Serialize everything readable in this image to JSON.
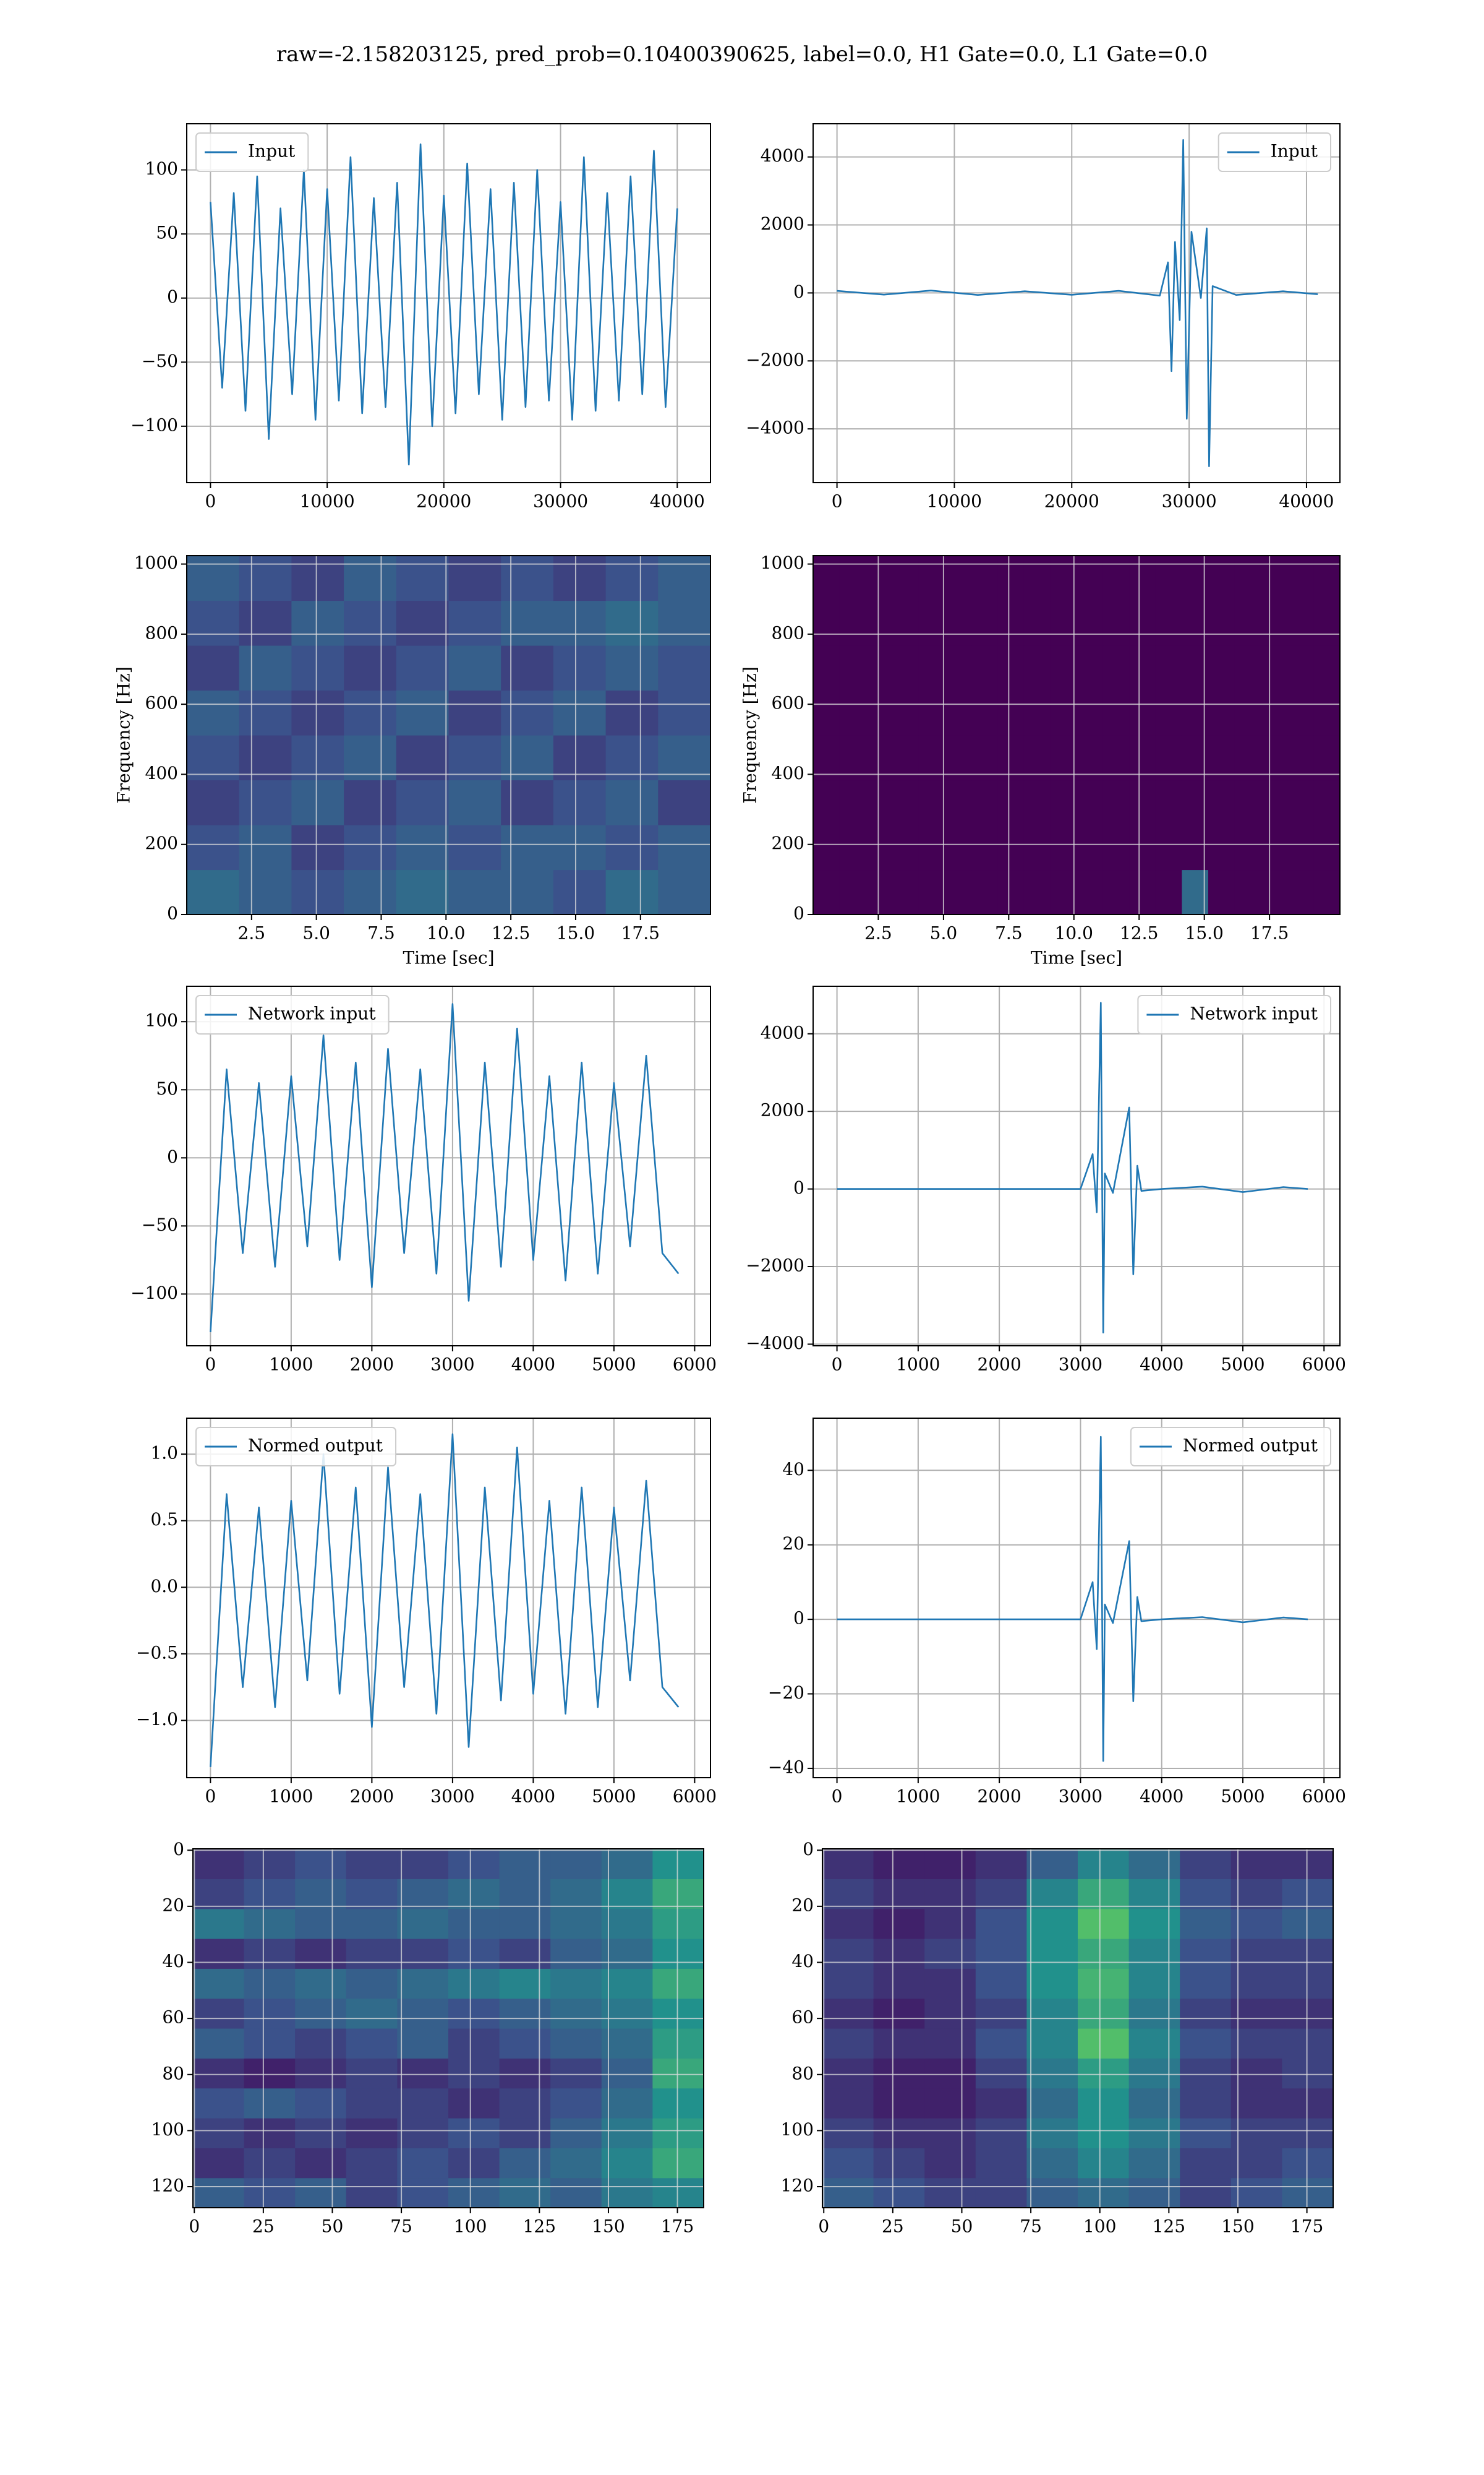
{
  "title": "raw=-2.158203125, pred_prob=0.10400390625, label=0.0, H1 Gate=0.0, L1 Gate=0.0",
  "chart_data": [
    {
      "type": "line",
      "grid": true,
      "legend": "upper left",
      "xlim": [
        -2034,
        42847
      ],
      "ylim": [
        -144,
        136
      ],
      "xticks": [
        0,
        10000,
        20000,
        30000,
        40000
      ],
      "yticks": [
        {
          "value": -100,
          "label": "−100"
        },
        {
          "value": -50,
          "label": "−50"
        },
        0,
        50,
        100
      ],
      "series": [
        {
          "name": "Input",
          "color": "#1f77b4",
          "x": [
            0,
            1000,
            2000,
            3000,
            4000,
            5000,
            6000,
            7000,
            8000,
            9000,
            10000,
            11000,
            12000,
            13000,
            14000,
            15000,
            16000,
            17000,
            18000,
            19000,
            20000,
            21000,
            22000,
            23000,
            24000,
            25000,
            26000,
            27000,
            28000,
            29000,
            30000,
            31000,
            32000,
            33000,
            34000,
            35000,
            36000,
            37000,
            38000,
            39000,
            40000
          ],
          "values": [
            75,
            -70,
            82,
            -88,
            95,
            -110,
            70,
            -75,
            100,
            -95,
            85,
            -80,
            110,
            -90,
            78,
            -85,
            90,
            -130,
            120,
            -100,
            80,
            -90,
            105,
            -75,
            85,
            -95,
            90,
            -85,
            100,
            -80,
            75,
            -95,
            110,
            -88,
            82,
            -80,
            95,
            -75,
            115,
            -85,
            70
          ]
        }
      ]
    },
    {
      "type": "line",
      "grid": true,
      "legend": "upper right",
      "xlim": [
        -2034,
        42847
      ],
      "ylim": [
        -5581,
        4977
      ],
      "xticks": [
        0,
        10000,
        20000,
        30000,
        40000
      ],
      "yticks": [
        {
          "value": -4000,
          "label": "−4000"
        },
        {
          "value": -2000,
          "label": "−2000"
        },
        0,
        2000,
        4000
      ],
      "series": [
        {
          "name": "Input",
          "color": "#1f77b4",
          "x": [
            0,
            4000,
            8000,
            12000,
            16000,
            20000,
            24000,
            27500,
            28200,
            28500,
            28800,
            29200,
            29500,
            29800,
            30200,
            31000,
            31500,
            31700,
            32000,
            34000,
            38000,
            40960
          ],
          "values": [
            60,
            -50,
            70,
            -60,
            50,
            -55,
            60,
            -80,
            900,
            -2300,
            1500,
            -800,
            4500,
            -3700,
            1800,
            -150,
            1900,
            -5100,
            200,
            -60,
            50,
            -40
          ]
        }
      ]
    },
    {
      "type": "heatmap",
      "grid": true,
      "xlabel": "Time [sec]",
      "ylabel": "Frequency [Hz]",
      "xlim": [
        0,
        20.2
      ],
      "ylim": [
        0,
        1024
      ],
      "xticks": [
        2.5,
        {
          "value": 5,
          "label": "5.0"
        },
        7.5,
        {
          "value": 10,
          "label": "10.0"
        },
        12.5,
        {
          "value": 15,
          "label": "15.0"
        },
        17.5
      ],
      "yticks": [
        0,
        200,
        400,
        600,
        800,
        1000
      ],
      "z": [
        [
          0.35,
          0.3,
          0.25,
          0.3,
          0.35,
          0.3,
          0.3,
          0.25,
          0.35,
          0.3
        ],
        [
          0.25,
          0.3,
          0.2,
          0.25,
          0.3,
          0.25,
          0.3,
          0.3,
          0.25,
          0.3
        ],
        [
          0.2,
          0.25,
          0.3,
          0.2,
          0.25,
          0.3,
          0.2,
          0.25,
          0.3,
          0.2
        ],
        [
          0.25,
          0.2,
          0.25,
          0.3,
          0.2,
          0.25,
          0.3,
          0.2,
          0.25,
          0.3
        ],
        [
          0.3,
          0.25,
          0.2,
          0.25,
          0.3,
          0.2,
          0.25,
          0.3,
          0.2,
          0.25
        ],
        [
          0.2,
          0.3,
          0.25,
          0.2,
          0.25,
          0.3,
          0.2,
          0.25,
          0.3,
          0.25
        ],
        [
          0.25,
          0.2,
          0.3,
          0.25,
          0.2,
          0.25,
          0.3,
          0.3,
          0.35,
          0.3
        ],
        [
          0.3,
          0.25,
          0.2,
          0.3,
          0.25,
          0.2,
          0.25,
          0.2,
          0.25,
          0.3
        ]
      ]
    },
    {
      "type": "heatmap",
      "grid": true,
      "xlabel": "Time [sec]",
      "ylabel": "Frequency [Hz]",
      "xlim": [
        0,
        20.2
      ],
      "ylim": [
        0,
        1024
      ],
      "xticks": [
        2.5,
        {
          "value": 5,
          "label": "5.0"
        },
        7.5,
        {
          "value": 10,
          "label": "10.0"
        },
        12.5,
        {
          "value": 15,
          "label": "15.0"
        },
        17.5
      ],
      "yticks": [
        0,
        200,
        400,
        600,
        800,
        1000
      ],
      "z": [
        [
          0,
          0,
          0,
          0,
          0,
          0,
          0,
          0,
          0,
          0,
          0,
          0,
          0,
          0,
          0.35,
          0,
          0,
          0,
          0,
          0
        ],
        [
          0,
          0,
          0,
          0,
          0,
          0,
          0,
          0,
          0,
          0,
          0,
          0,
          0,
          0,
          0,
          0,
          0,
          0,
          0,
          0
        ],
        [
          0,
          0,
          0,
          0,
          0,
          0,
          0,
          0,
          0,
          0,
          0,
          0,
          0,
          0,
          0,
          0,
          0,
          0,
          0,
          0
        ],
        [
          0,
          0,
          0,
          0,
          0,
          0,
          0,
          0,
          0,
          0,
          0,
          0,
          0,
          0,
          0,
          0,
          0,
          0,
          0,
          0
        ],
        [
          0,
          0,
          0,
          0,
          0,
          0,
          0,
          0,
          0,
          0,
          0,
          0,
          0,
          0,
          0,
          0,
          0,
          0,
          0,
          0
        ],
        [
          0,
          0,
          0,
          0,
          0,
          0,
          0,
          0,
          0,
          0,
          0,
          0,
          0,
          0,
          0,
          0,
          0,
          0,
          0,
          0
        ],
        [
          0,
          0,
          0,
          0,
          0,
          0,
          0,
          0,
          0,
          0,
          0,
          0,
          0,
          0,
          0,
          0,
          0,
          0,
          0,
          0
        ],
        [
          0,
          0,
          0,
          0,
          0,
          0,
          0,
          0,
          0,
          0,
          0,
          0,
          0,
          0,
          0,
          0,
          0,
          0,
          0,
          0
        ]
      ]
    },
    {
      "type": "line",
      "grid": true,
      "legend": "upper left",
      "xlim": [
        -294,
        6196
      ],
      "ylim": [
        -138,
        126
      ],
      "xticks": [
        0,
        1000,
        2000,
        3000,
        4000,
        5000,
        6000
      ],
      "yticks": [
        {
          "value": -100,
          "label": "−100"
        },
        {
          "value": -50,
          "label": "−50"
        },
        0,
        50,
        100
      ],
      "series": [
        {
          "name": "Network input",
          "color": "#1f77b4",
          "x": [
            0,
            200,
            400,
            600,
            800,
            1000,
            1200,
            1400,
            1600,
            1800,
            2000,
            2200,
            2400,
            2600,
            2800,
            3000,
            3200,
            3400,
            3600,
            3800,
            4000,
            4200,
            4400,
            4600,
            4800,
            5000,
            5200,
            5400,
            5600,
            5800
          ],
          "values": [
            -128,
            65,
            -70,
            55,
            -80,
            60,
            -65,
            90,
            -75,
            70,
            -95,
            80,
            -70,
            65,
            -85,
            113,
            -105,
            70,
            -80,
            95,
            -75,
            60,
            -90,
            70,
            -85,
            55,
            -65,
            75,
            -70,
            -85
          ]
        }
      ]
    },
    {
      "type": "line",
      "grid": true,
      "legend": "upper right",
      "xlim": [
        -294,
        6196
      ],
      "ylim": [
        -4041,
        5224
      ],
      "xticks": [
        0,
        1000,
        2000,
        3000,
        4000,
        5000,
        6000
      ],
      "yticks": [
        {
          "value": -4000,
          "label": "−4000"
        },
        {
          "value": -2000,
          "label": "−2000"
        },
        0,
        2000,
        4000
      ],
      "series": [
        {
          "name": "Network input",
          "color": "#1f77b4",
          "x": [
            0,
            1000,
            2000,
            3000,
            3150,
            3200,
            3250,
            3280,
            3300,
            3400,
            3600,
            3650,
            3700,
            3750,
            4000,
            4500,
            5000,
            5500,
            5800
          ],
          "values": [
            0,
            0,
            0,
            0,
            900,
            -600,
            4800,
            -3700,
            400,
            -100,
            2100,
            -2200,
            600,
            -50,
            0,
            60,
            -80,
            50,
            0
          ]
        }
      ]
    },
    {
      "type": "line",
      "grid": true,
      "legend": "upper left",
      "xlim": [
        -294,
        6196
      ],
      "ylim": [
        -1.43,
        1.27
      ],
      "xticks": [
        0,
        1000,
        2000,
        3000,
        4000,
        5000,
        6000
      ],
      "yticks": [
        {
          "value": -1,
          "label": "−1.0"
        },
        {
          "value": -0.5,
          "label": "−0.5"
        },
        {
          "value": 0,
          "label": "0.0"
        },
        0.5,
        {
          "value": 1,
          "label": "1.0"
        }
      ],
      "series": [
        {
          "name": "Normed output",
          "color": "#1f77b4",
          "x": [
            0,
            200,
            400,
            600,
            800,
            1000,
            1200,
            1400,
            1600,
            1800,
            2000,
            2200,
            2400,
            2600,
            2800,
            3000,
            3200,
            3400,
            3600,
            3800,
            4000,
            4200,
            4400,
            4600,
            4800,
            5000,
            5200,
            5400,
            5600,
            5800
          ],
          "values": [
            -1.35,
            0.7,
            -0.75,
            0.6,
            -0.9,
            0.65,
            -0.7,
            1.0,
            -0.8,
            0.75,
            -1.05,
            0.9,
            -0.75,
            0.7,
            -0.95,
            1.15,
            -1.2,
            0.75,
            -0.85,
            1.05,
            -0.8,
            0.65,
            -0.95,
            0.75,
            -0.9,
            0.6,
            -0.7,
            0.8,
            -0.75,
            -0.9
          ]
        }
      ]
    },
    {
      "type": "line",
      "grid": true,
      "legend": "upper right",
      "xlim": [
        -294,
        6196
      ],
      "ylim": [
        -42.5,
        54
      ],
      "xticks": [
        0,
        1000,
        2000,
        3000,
        4000,
        5000,
        6000
      ],
      "yticks": [
        {
          "value": -40,
          "label": "−40"
        },
        {
          "value": -20,
          "label": "−20"
        },
        0,
        20,
        40
      ],
      "series": [
        {
          "name": "Normed output",
          "color": "#1f77b4",
          "x": [
            0,
            1000,
            2000,
            3000,
            3150,
            3200,
            3250,
            3280,
            3300,
            3400,
            3600,
            3650,
            3700,
            3750,
            4000,
            4500,
            5000,
            5500,
            5800
          ],
          "values": [
            0,
            0,
            0,
            0,
            10,
            -8,
            49,
            -38,
            4,
            -1,
            21,
            -22,
            6,
            -0.5,
            0,
            0.6,
            -0.8,
            0.5,
            0
          ]
        }
      ]
    },
    {
      "type": "heatmap",
      "grid": true,
      "xlim": [
        -0.5,
        184.5
      ],
      "ylim": [
        127.5,
        -0.5
      ],
      "xticks": [
        0,
        25,
        50,
        75,
        100,
        125,
        150,
        175
      ],
      "yticks": [
        0,
        20,
        40,
        60,
        80,
        100,
        120
      ],
      "z": [
        [
          0.3,
          0.25,
          0.3,
          0.2,
          0.25,
          0.3,
          0.35,
          0.3,
          0.4,
          0.45
        ],
        [
          0.15,
          0.2,
          0.15,
          0.2,
          0.25,
          0.2,
          0.3,
          0.35,
          0.45,
          0.6
        ],
        [
          0.2,
          0.15,
          0.2,
          0.15,
          0.2,
          0.25,
          0.2,
          0.3,
          0.4,
          0.55
        ],
        [
          0.25,
          0.3,
          0.25,
          0.2,
          0.2,
          0.15,
          0.2,
          0.25,
          0.35,
          0.5
        ],
        [
          0.15,
          0.1,
          0.15,
          0.2,
          0.15,
          0.2,
          0.15,
          0.2,
          0.3,
          0.6
        ],
        [
          0.3,
          0.25,
          0.2,
          0.25,
          0.3,
          0.2,
          0.25,
          0.3,
          0.35,
          0.55
        ],
        [
          0.2,
          0.25,
          0.3,
          0.35,
          0.3,
          0.25,
          0.3,
          0.35,
          0.4,
          0.5
        ],
        [
          0.35,
          0.3,
          0.35,
          0.3,
          0.35,
          0.4,
          0.45,
          0.4,
          0.45,
          0.6
        ],
        [
          0.15,
          0.2,
          0.15,
          0.2,
          0.2,
          0.25,
          0.2,
          0.3,
          0.35,
          0.5
        ],
        [
          0.4,
          0.35,
          0.3,
          0.3,
          0.35,
          0.3,
          0.3,
          0.35,
          0.4,
          0.55
        ],
        [
          0.2,
          0.25,
          0.3,
          0.25,
          0.3,
          0.35,
          0.3,
          0.35,
          0.45,
          0.6
        ],
        [
          0.15,
          0.2,
          0.25,
          0.2,
          0.2,
          0.25,
          0.3,
          0.3,
          0.35,
          0.5
        ]
      ]
    },
    {
      "type": "heatmap",
      "grid": true,
      "xlim": [
        -0.5,
        184.5
      ],
      "ylim": [
        127.5,
        -0.5
      ],
      "xticks": [
        0,
        25,
        50,
        75,
        100,
        125,
        150,
        175
      ],
      "yticks": [
        0,
        20,
        40,
        60,
        80,
        100,
        120
      ],
      "z": [
        [
          0.3,
          0.25,
          0.2,
          0.2,
          0.3,
          0.35,
          0.3,
          0.2,
          0.25,
          0.3
        ],
        [
          0.25,
          0.2,
          0.15,
          0.2,
          0.35,
          0.45,
          0.35,
          0.2,
          0.2,
          0.25
        ],
        [
          0.2,
          0.15,
          0.15,
          0.2,
          0.4,
          0.5,
          0.4,
          0.25,
          0.2,
          0.2
        ],
        [
          0.15,
          0.1,
          0.1,
          0.15,
          0.35,
          0.5,
          0.35,
          0.2,
          0.15,
          0.15
        ],
        [
          0.15,
          0.1,
          0.1,
          0.2,
          0.4,
          0.55,
          0.4,
          0.2,
          0.15,
          0.2
        ],
        [
          0.2,
          0.15,
          0.15,
          0.25,
          0.45,
          0.7,
          0.45,
          0.25,
          0.2,
          0.2
        ],
        [
          0.15,
          0.1,
          0.15,
          0.2,
          0.45,
          0.6,
          0.4,
          0.2,
          0.15,
          0.15
        ],
        [
          0.2,
          0.15,
          0.15,
          0.25,
          0.5,
          0.65,
          0.45,
          0.25,
          0.2,
          0.2
        ],
        [
          0.2,
          0.15,
          0.2,
          0.25,
          0.5,
          0.6,
          0.45,
          0.25,
          0.2,
          0.2
        ],
        [
          0.15,
          0.1,
          0.15,
          0.25,
          0.5,
          0.7,
          0.5,
          0.3,
          0.25,
          0.3
        ],
        [
          0.2,
          0.15,
          0.15,
          0.2,
          0.45,
          0.6,
          0.45,
          0.25,
          0.2,
          0.25
        ],
        [
          0.15,
          0.1,
          0.1,
          0.15,
          0.3,
          0.45,
          0.35,
          0.2,
          0.15,
          0.15
        ]
      ]
    }
  ]
}
